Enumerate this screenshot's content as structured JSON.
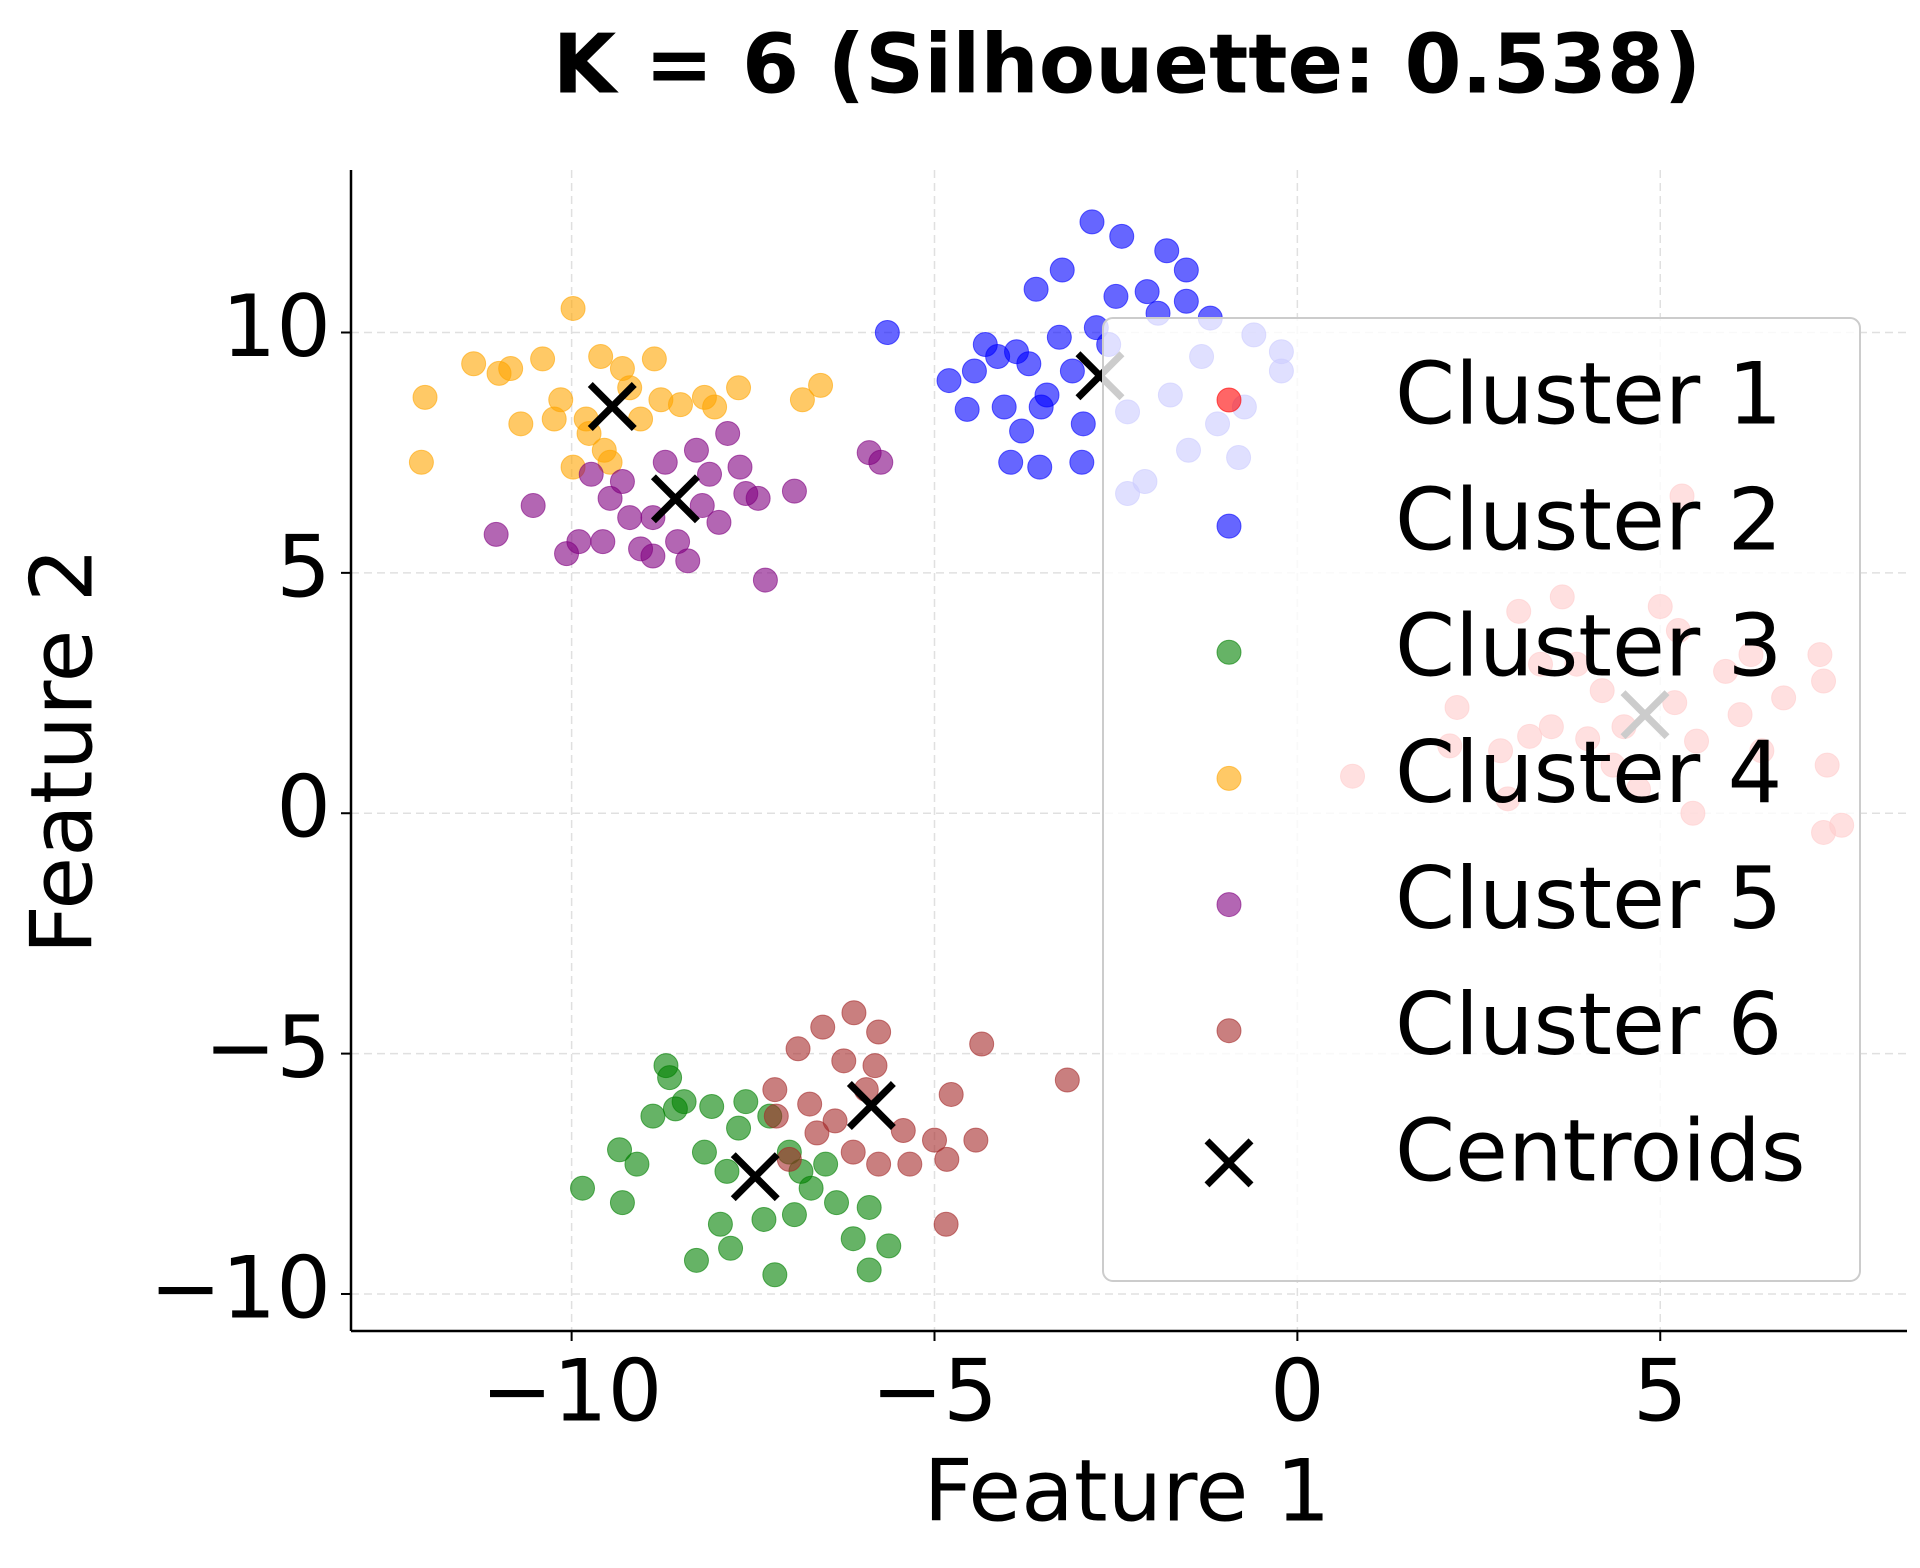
{
  "chart_data": {
    "type": "scatter",
    "title": "K = 6 (Silhouette: 0.538)",
    "x_label": "Feature 1",
    "y_label": "Feature 2",
    "xlim": [
      -13.04,
      8.4
    ],
    "ylim": [
      -10.77,
      13.38
    ],
    "xticks": [
      {
        "value": -10,
        "label": "−10"
      },
      {
        "value": -5,
        "label": "−5"
      },
      0,
      5
    ],
    "yticks": [
      {
        "value": -10,
        "label": "−10"
      },
      {
        "value": -5,
        "label": "−5"
      },
      0,
      5,
      10
    ],
    "grid": true,
    "legend": "right",
    "series": [
      {
        "name": "Cluster 1",
        "color": "red",
        "x": [
          0.76,
          2.1,
          2.2,
          2.8,
          3.05,
          3.65,
          3.2,
          2.9,
          5.0,
          5.25,
          5.3,
          7.2,
          7.25,
          7.3,
          7.25,
          7.5,
          6.7,
          6.1,
          5.5,
          4.2,
          3.85,
          3.5,
          4.35,
          5.45,
          4.7,
          5.9,
          6.25,
          3.35,
          4.5,
          5.2,
          6.4,
          4.0
        ],
        "values": [
          0.77,
          1.4,
          2.2,
          1.3,
          4.2,
          4.5,
          1.6,
          0.3,
          4.3,
          3.8,
          6.6,
          3.3,
          2.75,
          1.0,
          -0.4,
          -0.25,
          2.4,
          2.05,
          1.5,
          2.55,
          3.1,
          1.8,
          1.0,
          0,
          0.5,
          2.95,
          3.3,
          3.1,
          1.8,
          2.3,
          1.3,
          1.55
        ]
      },
      {
        "name": "Cluster 2",
        "color": "blue",
        "x": [
          -5.65,
          -4.8,
          -4.55,
          -4.45,
          -3.95,
          -3.8,
          -3.55,
          -2.83,
          -2.42,
          -1.8,
          -1.53,
          -3.24,
          -3.6,
          -2.5,
          -2.07,
          -1.53,
          -1.2,
          -4.3,
          -3.87,
          -3.45,
          -3.1,
          -2.95,
          -2.97,
          -3.28,
          -3.7,
          -4.04,
          -2.6,
          -3.53,
          -2.77,
          -4.13,
          -1.92,
          -1.32,
          -0.6,
          -0.22,
          -0.22,
          -0.81,
          -1.5,
          -2.1,
          -2.34,
          -2.34,
          -1.75,
          -1.1,
          -0.73
        ],
        "values": [
          10.0,
          9.0,
          8.4,
          9.2,
          7.3,
          7.95,
          7.2,
          12.3,
          12.0,
          11.7,
          11.3,
          11.3,
          10.9,
          10.75,
          10.85,
          10.65,
          10.3,
          9.75,
          9.6,
          8.7,
          9.2,
          8.1,
          7.3,
          9.9,
          9.35,
          8.45,
          9.75,
          8.45,
          10.1,
          9.5,
          10.4,
          9.5,
          9.95,
          9.6,
          9.2,
          7.4,
          7.55,
          6.9,
          6.65,
          8.35,
          8.7,
          8.1,
          8.45
        ]
      },
      {
        "name": "Cluster 3",
        "color": "green",
        "x": [
          -9.85,
          -9.34,
          -9.3,
          -9.1,
          -8.88,
          -8.7,
          -8.65,
          -8.57,
          -8.45,
          -8.28,
          -8.17,
          -8.07,
          -7.95,
          -7.81,
          -7.7,
          -7.6,
          -7.35,
          -7.2,
          -7.0,
          -6.93,
          -6.7,
          -6.5,
          -6.35,
          -6.12,
          -5.9,
          -5.9,
          -5.63,
          -7.86,
          -6.84,
          -7.27
        ],
        "values": [
          -7.8,
          -7.0,
          -8.1,
          -7.3,
          -6.3,
          -5.25,
          -5.5,
          -6.15,
          -6.0,
          -9.3,
          -7.05,
          -6.1,
          -8.55,
          -9.05,
          -6.55,
          -6.0,
          -8.45,
          -9.6,
          -7.05,
          -8.35,
          -7.8,
          -7.3,
          -8.1,
          -8.85,
          -8.2,
          -9.5,
          -9.0,
          -7.45,
          -7.45,
          -6.3
        ]
      },
      {
        "name": "Cluster 4",
        "color": "orange",
        "x": [
          -12.07,
          -12.02,
          -11.35,
          -11.0,
          -10.84,
          -10.7,
          -10.4,
          -10.24,
          -10.15,
          -9.98,
          -9.98,
          -9.8,
          -9.6,
          -9.55,
          -9.3,
          -9.2,
          -8.86,
          -8.77,
          -8.5,
          -8.17,
          -8.03,
          -7.7,
          -6.82,
          -6.57,
          -9.76,
          -9.47,
          -9.05
        ],
        "values": [
          7.3,
          8.65,
          9.35,
          9.15,
          9.25,
          8.1,
          9.45,
          8.2,
          8.6,
          10.5,
          7.2,
          8.2,
          9.5,
          7.55,
          9.25,
          8.85,
          9.45,
          8.6,
          8.5,
          8.65,
          8.45,
          8.85,
          8.6,
          8.9,
          7.9,
          7.3,
          8.2
        ]
      },
      {
        "name": "Cluster 5",
        "color": "purple",
        "x": [
          -11.04,
          -10.53,
          -10.07,
          -9.9,
          -9.73,
          -9.57,
          -9.47,
          -9.3,
          -9.2,
          -9.05,
          -8.88,
          -8.71,
          -8.54,
          -8.4,
          -8.28,
          -8.2,
          -8.1,
          -7.97,
          -7.85,
          -7.68,
          -7.6,
          -7.43,
          -7.33,
          -6.93,
          -5.9,
          -5.74,
          -8.88
        ],
        "values": [
          5.8,
          6.4,
          5.4,
          5.65,
          7.05,
          5.65,
          6.55,
          6.9,
          6.15,
          5.5,
          5.35,
          7.3,
          5.65,
          5.25,
          7.55,
          6.4,
          7.05,
          6.05,
          7.9,
          7.2,
          6.65,
          6.55,
          4.85,
          6.7,
          7.5,
          7.3,
          6.15
        ]
      },
      {
        "name": "Cluster 6",
        "color": "brown",
        "x": [
          -7.2,
          -6.88,
          -6.54,
          -6.11,
          -5.77,
          -6.25,
          -5.82,
          -6.72,
          -6.62,
          -6.37,
          -6.12,
          -5.77,
          -5.43,
          -5.34,
          -5.0,
          -4.83,
          -4.77,
          -4.43,
          -4.35,
          -3.17,
          -4.84,
          -7.0,
          -5.94,
          -7.18
        ],
        "values": [
          -5.75,
          -4.9,
          -4.45,
          -4.15,
          -4.55,
          -5.15,
          -5.25,
          -6.05,
          -6.65,
          -6.4,
          -7.05,
          -7.3,
          -6.6,
          -7.3,
          -6.8,
          -7.2,
          -5.85,
          -6.8,
          -4.8,
          -5.55,
          -8.55,
          -7.2,
          -5.75,
          -6.3
        ]
      },
      {
        "name": "Centroids",
        "color": "black",
        "marker": "x",
        "x": [
          4.79,
          -2.72,
          -7.47,
          -9.44,
          -8.57,
          -5.87
        ],
        "values": [
          2.05,
          9.1,
          -7.56,
          8.46,
          6.54,
          -6.08
        ]
      }
    ]
  }
}
